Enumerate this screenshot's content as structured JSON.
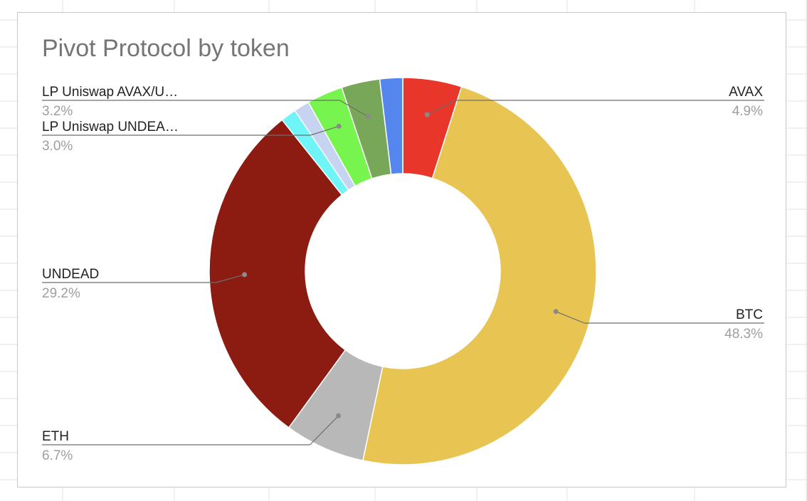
{
  "chart_data": {
    "type": "pie",
    "donut": true,
    "title": "Pivot Protocol by token",
    "slices": [
      {
        "label": "AVAX",
        "value": 4.9,
        "pct_label": "4.9%",
        "color": "#e8362a",
        "labeled": true
      },
      {
        "label": "BTC",
        "value": 48.3,
        "pct_label": "48.3%",
        "color": "#e8c452",
        "labeled": true
      },
      {
        "label": "ETH",
        "value": 6.7,
        "pct_label": "6.7%",
        "color": "#b8b8b8",
        "labeled": true
      },
      {
        "label": "UNDEAD",
        "value": 29.2,
        "pct_label": "29.2%",
        "color": "#8c1c12",
        "labeled": true
      },
      {
        "label": "",
        "value": 1.3,
        "pct_label": "",
        "color": "#6ff4f8",
        "labeled": false
      },
      {
        "label": "",
        "value": 1.3,
        "pct_label": "",
        "color": "#c6d4f2",
        "labeled": false
      },
      {
        "label": "LP Uniswap UNDEA…",
        "value": 3.0,
        "pct_label": "3.0%",
        "color": "#77f54e",
        "labeled": true
      },
      {
        "label": "LP Uniswap AVAX/U…",
        "value": 3.2,
        "pct_label": "3.2%",
        "color": "#79a75a",
        "labeled": true
      },
      {
        "label": "",
        "value": 1.9,
        "pct_label": "",
        "color": "#5586ee",
        "labeled": false
      }
    ],
    "legend": "labels-outside"
  }
}
